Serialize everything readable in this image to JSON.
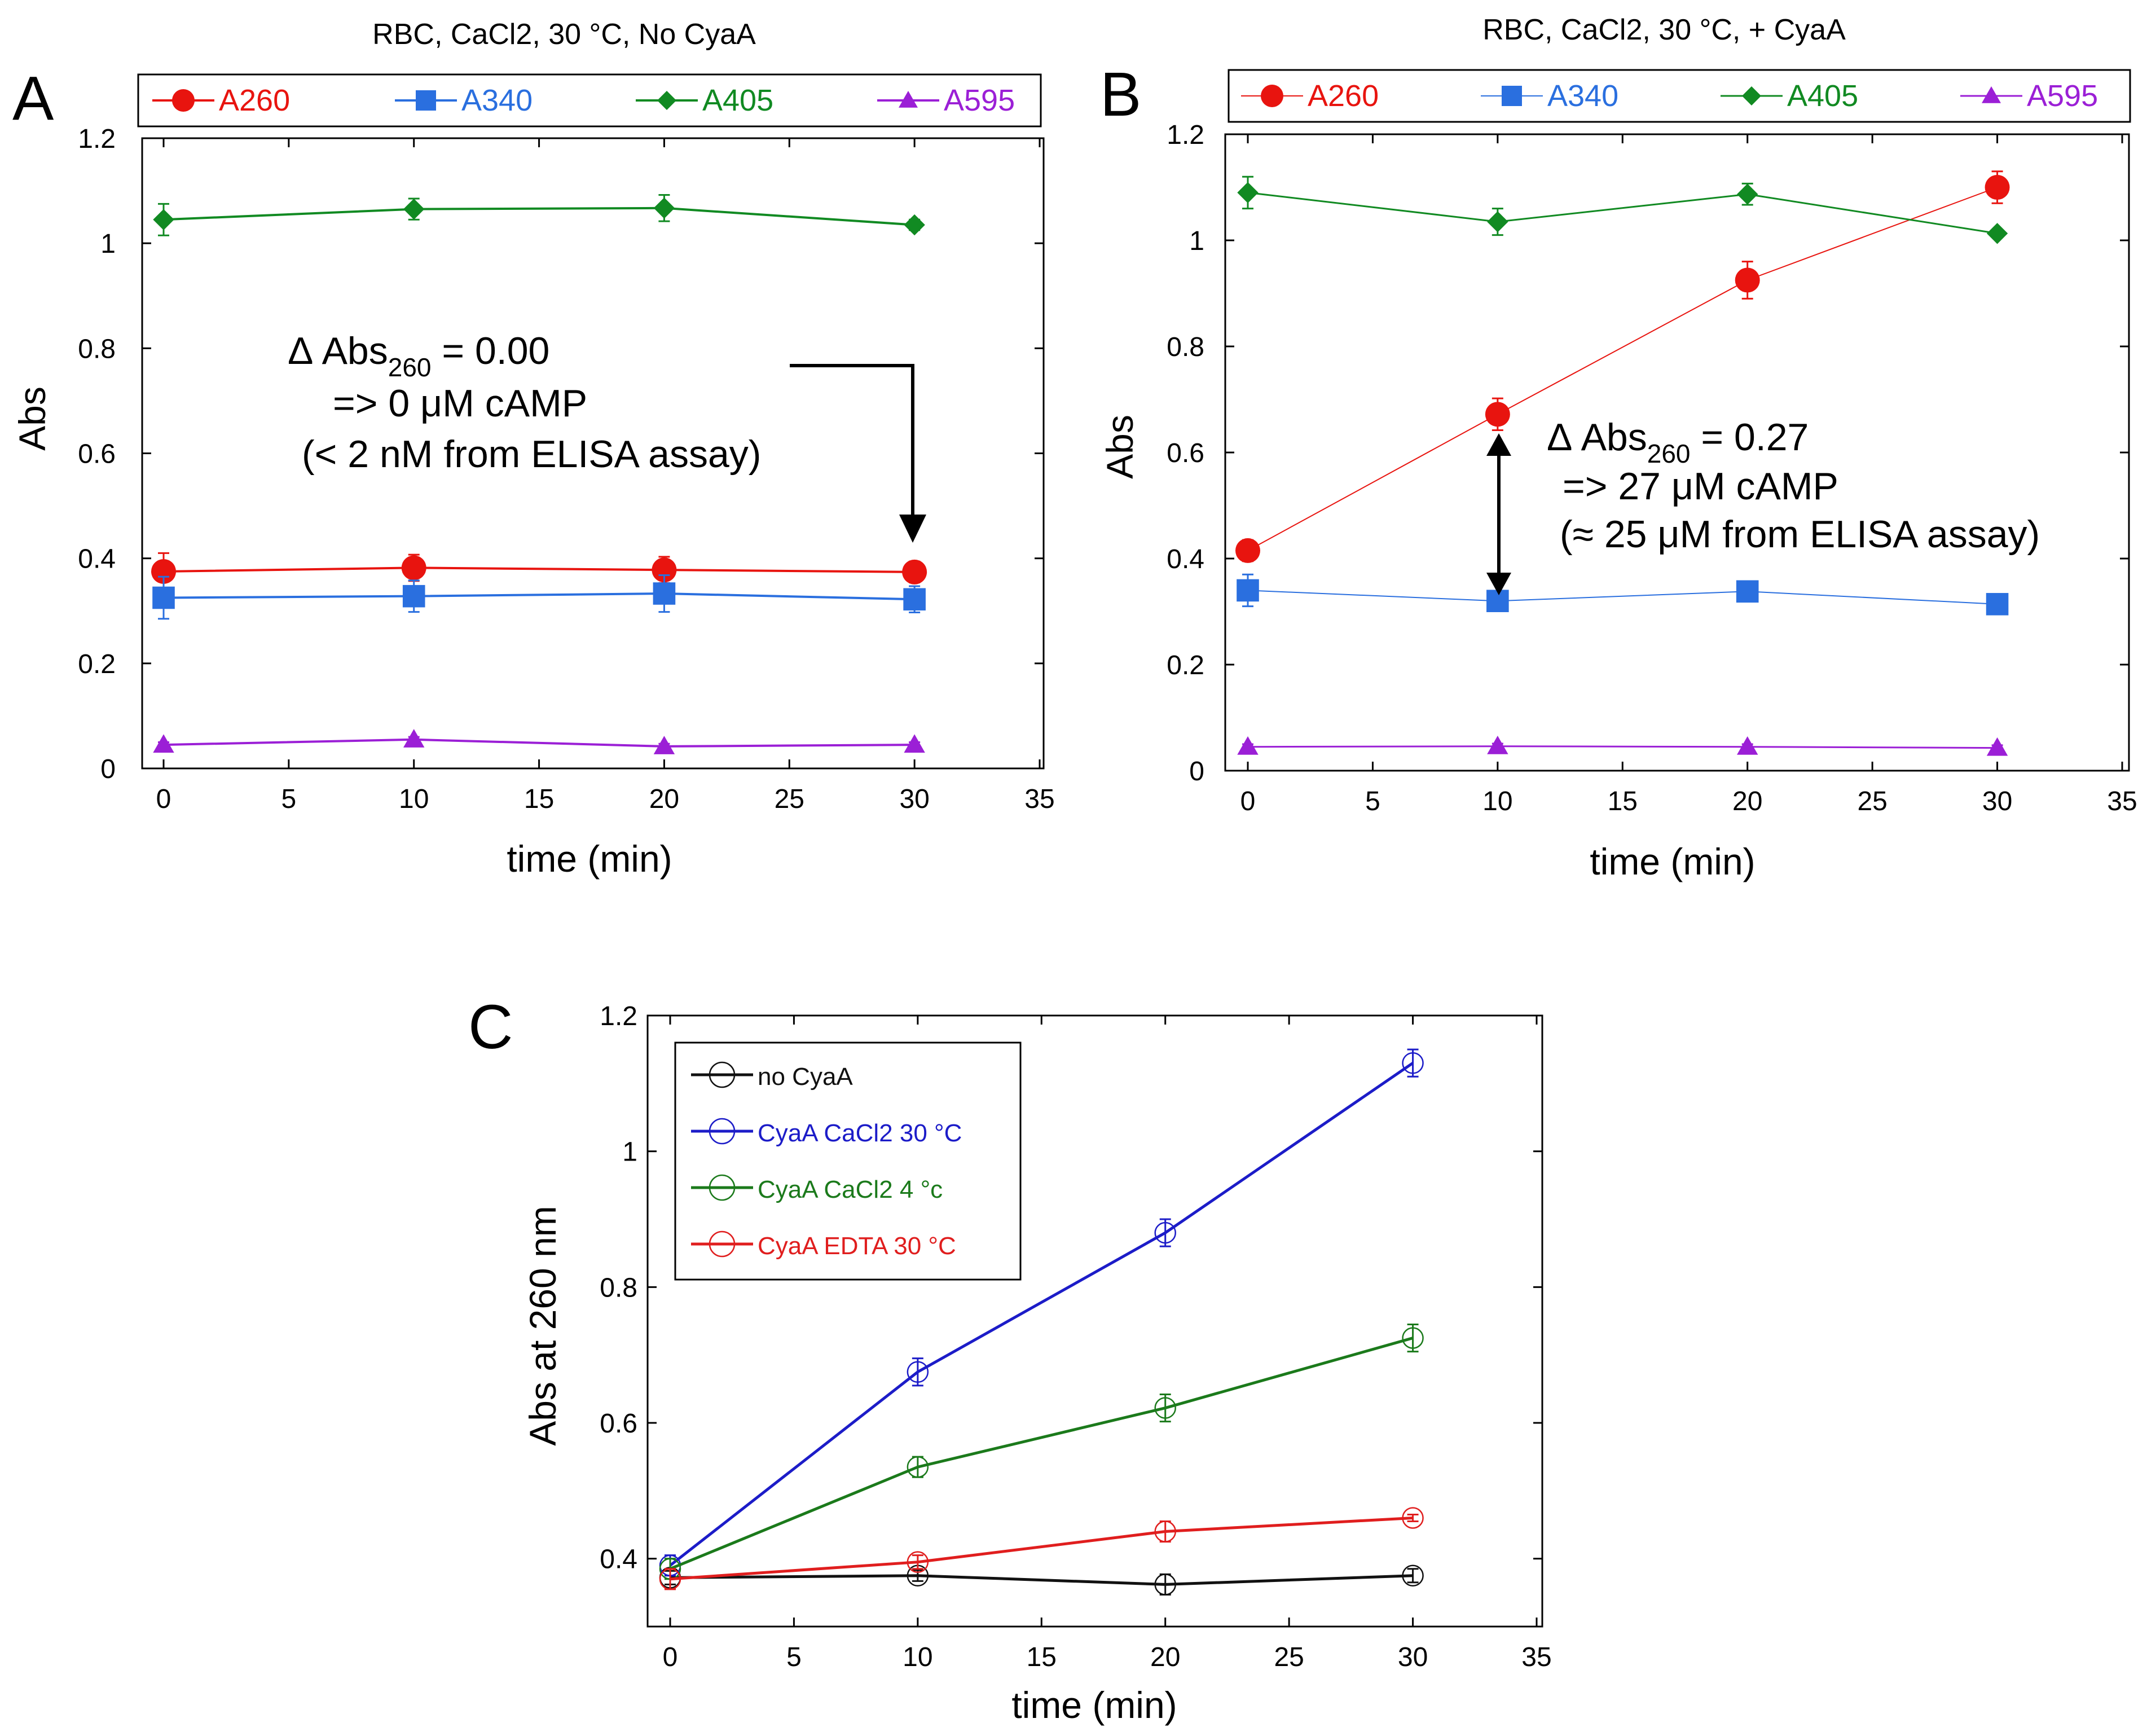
{
  "panels": {
    "A": {
      "label": "A",
      "legend": [
        "A260",
        "A340",
        "A405",
        "A595"
      ],
      "annotation": {
        "line1_prefix": "Δ Abs",
        "line1_sub": "260",
        "line1_suffix": " = 0.00",
        "line2": "=> 0 μM cAMP",
        "line3": "(< 2 nM from ELISA assay)"
      }
    },
    "B": {
      "label": "B",
      "legend": [
        "A260",
        "A340",
        "A405",
        "A595"
      ],
      "annotation": {
        "line1_prefix": "Δ Abs",
        "line1_sub": "260",
        "line1_suffix": " = 0.27",
        "line2": "=> 27 μM cAMP",
        "line3": "(≈ 25 μM from ELISA assay)"
      }
    },
    "C": {
      "label": "C",
      "legend": [
        "no CyaA",
        "CyaA CaCl2 30 °C",
        "CyaA CaCl2 4 °c",
        "CyaA EDTA 30 °C"
      ]
    }
  },
  "chart_data": [
    {
      "id": "A",
      "type": "line",
      "title": "RBC, CaCl2, 30 °C, No CyaA",
      "xlabel": "time (min)",
      "ylabel": "Abs",
      "xlim": [
        -1,
        35
      ],
      "ylim": [
        0,
        1.2
      ],
      "xticks": [
        0,
        5,
        10,
        15,
        20,
        25,
        30,
        35
      ],
      "yticks": [
        0,
        0.2,
        0.4,
        0.6,
        0.8,
        1,
        1.2
      ],
      "x": [
        0,
        10,
        20,
        30
      ],
      "series": [
        {
          "name": "A260",
          "color": "#e8140f",
          "marker": "circle",
          "values": [
            0.375,
            0.382,
            0.378,
            0.374
          ],
          "errors": [
            0.035,
            0.025,
            0.025,
            0.02
          ]
        },
        {
          "name": "A340",
          "color": "#2a6fdf",
          "marker": "square",
          "values": [
            0.325,
            0.328,
            0.333,
            0.322
          ],
          "errors": [
            0.04,
            0.03,
            0.035,
            0.025
          ]
        },
        {
          "name": "A405",
          "color": "#118a22",
          "marker": "diamond",
          "values": [
            1.045,
            1.065,
            1.067,
            1.035
          ],
          "errors": [
            0.03,
            0.02,
            0.025,
            0.01
          ]
        },
        {
          "name": "A595",
          "color": "#9b1fd6",
          "marker": "triangle",
          "values": [
            0.045,
            0.055,
            0.042,
            0.045
          ],
          "errors": [
            0.005,
            0.005,
            0.005,
            0.005
          ]
        }
      ]
    },
    {
      "id": "B",
      "type": "line",
      "title": "RBC, CaCl2, 30 °C, + CyaA",
      "xlabel": "time (min)",
      "ylabel": "Abs",
      "xlim": [
        -1,
        35
      ],
      "ylim": [
        0,
        1.2
      ],
      "xticks": [
        0,
        5,
        10,
        15,
        20,
        25,
        30,
        35
      ],
      "yticks": [
        0,
        0.2,
        0.4,
        0.6,
        0.8,
        1,
        1.2
      ],
      "x": [
        0,
        10,
        20,
        30
      ],
      "series": [
        {
          "name": "A260",
          "color": "#e8140f",
          "marker": "circle",
          "values": [
            0.415,
            0.672,
            0.925,
            1.1
          ],
          "errors": [
            0.02,
            0.03,
            0.035,
            0.03
          ]
        },
        {
          "name": "A340",
          "color": "#2a6fdf",
          "marker": "square",
          "values": [
            0.34,
            0.32,
            0.338,
            0.314
          ],
          "errors": [
            0.03,
            0.01,
            0.01,
            0.01
          ]
        },
        {
          "name": "A405",
          "color": "#118a22",
          "marker": "diamond",
          "values": [
            1.09,
            1.035,
            1.087,
            1.013
          ],
          "errors": [
            0.03,
            0.025,
            0.02,
            0.005
          ]
        },
        {
          "name": "A595",
          "color": "#9b1fd6",
          "marker": "triangle",
          "values": [
            0.045,
            0.046,
            0.045,
            0.043
          ],
          "errors": [
            0.005,
            0.005,
            0.005,
            0.005
          ]
        }
      ]
    },
    {
      "id": "C",
      "type": "line",
      "title": "",
      "xlabel": "time (min)",
      "ylabel": "Abs at 260 nm",
      "xlim": [
        -1,
        35
      ],
      "ylim": [
        0.3,
        1.2
      ],
      "xticks": [
        0,
        5,
        10,
        15,
        20,
        25,
        30,
        35
      ],
      "yticks": [
        0.4,
        0.6,
        0.8,
        1,
        1.2
      ],
      "x": [
        0,
        10,
        20,
        30
      ],
      "series": [
        {
          "name": "no CyaA",
          "color": "#111111",
          "marker": "open-circle",
          "values": [
            0.372,
            0.375,
            0.362,
            0.375
          ],
          "errors": [
            0.01,
            0.008,
            0.015,
            0.01
          ]
        },
        {
          "name": "CyaA CaCl2 30 °C",
          "color": "#1c1cc8",
          "marker": "open-circle",
          "values": [
            0.39,
            0.675,
            0.88,
            1.13
          ],
          "errors": [
            0.015,
            0.02,
            0.02,
            0.02
          ]
        },
        {
          "name": "CyaA CaCl2 4 °c",
          "color": "#1b7a1b",
          "marker": "open-circle",
          "values": [
            0.385,
            0.535,
            0.622,
            0.725
          ],
          "errors": [
            0.015,
            0.015,
            0.02,
            0.02
          ]
        },
        {
          "name": "CyaA EDTA 30 °C",
          "color": "#e01e1e",
          "marker": "open-circle",
          "values": [
            0.37,
            0.395,
            0.44,
            0.46
          ],
          "errors": [
            0.015,
            0.01,
            0.015,
            0.005
          ]
        }
      ]
    }
  ]
}
